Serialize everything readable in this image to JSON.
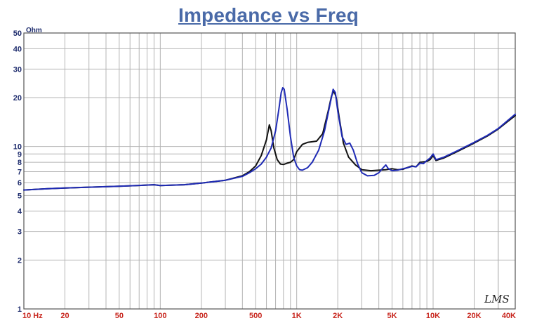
{
  "chart_data": {
    "type": "line",
    "title": "Impedance vs Freq",
    "y_unit": "Ohm",
    "x_scale": "log",
    "y_scale": "log",
    "xlim": [
      10,
      40000
    ],
    "ylim": [
      1,
      50
    ],
    "grid": true,
    "x_tick_labels": [
      {
        "value": 10,
        "label": "10  Hz"
      },
      {
        "value": 20,
        "label": "20"
      },
      {
        "value": 50,
        "label": "50"
      },
      {
        "value": 100,
        "label": "100"
      },
      {
        "value": 200,
        "label": "200"
      },
      {
        "value": 500,
        "label": "500"
      },
      {
        "value": 1000,
        "label": "1K"
      },
      {
        "value": 2000,
        "label": "2K"
      },
      {
        "value": 5000,
        "label": "5K"
      },
      {
        "value": 10000,
        "label": "10K"
      },
      {
        "value": 20000,
        "label": "20K"
      },
      {
        "value": 40000,
        "label": "40K"
      }
    ],
    "y_tick_labels": [
      {
        "value": 1,
        "label": "1"
      },
      {
        "value": 2,
        "label": "2"
      },
      {
        "value": 3,
        "label": "3"
      },
      {
        "value": 4,
        "label": "4"
      },
      {
        "value": 5,
        "label": "5"
      },
      {
        "value": 6,
        "label": "6"
      },
      {
        "value": 7,
        "label": "7"
      },
      {
        "value": 8,
        "label": "8"
      },
      {
        "value": 9,
        "label": "9"
      },
      {
        "value": 10,
        "label": "10"
      },
      {
        "value": 20,
        "label": "20"
      },
      {
        "value": 30,
        "label": "30"
      },
      {
        "value": 40,
        "label": "40"
      },
      {
        "value": 50,
        "label": "50"
      }
    ],
    "watermark": "LMS",
    "series": [
      {
        "color": "#111111",
        "points": [
          [
            10,
            5.4
          ],
          [
            15,
            5.5
          ],
          [
            20,
            5.55
          ],
          [
            30,
            5.62
          ],
          [
            50,
            5.7
          ],
          [
            70,
            5.76
          ],
          [
            90,
            5.82
          ],
          [
            100,
            5.75
          ],
          [
            150,
            5.82
          ],
          [
            200,
            5.95
          ],
          [
            300,
            6.2
          ],
          [
            400,
            6.6
          ],
          [
            450,
            7.0
          ],
          [
            500,
            7.6
          ],
          [
            550,
            8.8
          ],
          [
            600,
            11.0
          ],
          [
            630,
            13.6
          ],
          [
            650,
            12.5
          ],
          [
            680,
            9.8
          ],
          [
            720,
            8.3
          ],
          [
            760,
            7.8
          ],
          [
            800,
            7.75
          ],
          [
            850,
            7.9
          ],
          [
            900,
            8.0
          ],
          [
            950,
            8.3
          ],
          [
            1000,
            9.3
          ],
          [
            1100,
            10.3
          ],
          [
            1200,
            10.6
          ],
          [
            1400,
            10.8
          ],
          [
            1550,
            12.0
          ],
          [
            1700,
            16.5
          ],
          [
            1800,
            20.5
          ],
          [
            1880,
            22.0
          ],
          [
            1950,
            20.0
          ],
          [
            2050,
            15.0
          ],
          [
            2200,
            10.5
          ],
          [
            2400,
            8.6
          ],
          [
            2700,
            7.7
          ],
          [
            3000,
            7.2
          ],
          [
            3500,
            7.1
          ],
          [
            4000,
            7.15
          ],
          [
            4500,
            7.2
          ],
          [
            5000,
            7.3
          ],
          [
            5500,
            7.2
          ],
          [
            6000,
            7.25
          ],
          [
            7000,
            7.6
          ],
          [
            7500,
            7.5
          ],
          [
            8000,
            8.0
          ],
          [
            9000,
            8.1
          ],
          [
            9500,
            8.3
          ],
          [
            10000,
            8.8
          ],
          [
            10500,
            8.2
          ],
          [
            12000,
            8.5
          ],
          [
            15000,
            9.3
          ],
          [
            20000,
            10.5
          ],
          [
            25000,
            11.6
          ],
          [
            30000,
            12.8
          ],
          [
            35000,
            14.2
          ],
          [
            40000,
            15.5
          ]
        ]
      },
      {
        "color": "#1f2bb5",
        "points": [
          [
            10,
            5.4
          ],
          [
            15,
            5.5
          ],
          [
            20,
            5.55
          ],
          [
            30,
            5.62
          ],
          [
            50,
            5.7
          ],
          [
            70,
            5.76
          ],
          [
            90,
            5.82
          ],
          [
            100,
            5.75
          ],
          [
            150,
            5.82
          ],
          [
            200,
            5.95
          ],
          [
            300,
            6.2
          ],
          [
            400,
            6.55
          ],
          [
            450,
            6.9
          ],
          [
            500,
            7.3
          ],
          [
            550,
            7.8
          ],
          [
            600,
            8.6
          ],
          [
            650,
            9.8
          ],
          [
            700,
            12.5
          ],
          [
            740,
            17.0
          ],
          [
            770,
            21.5
          ],
          [
            790,
            23.0
          ],
          [
            810,
            22.5
          ],
          [
            850,
            17.0
          ],
          [
            900,
            11.5
          ],
          [
            950,
            8.6
          ],
          [
            1000,
            7.6
          ],
          [
            1050,
            7.2
          ],
          [
            1100,
            7.15
          ],
          [
            1200,
            7.4
          ],
          [
            1300,
            8.0
          ],
          [
            1450,
            9.5
          ],
          [
            1600,
            12.5
          ],
          [
            1750,
            18.0
          ],
          [
            1850,
            22.5
          ],
          [
            1920,
            21.5
          ],
          [
            2000,
            16.5
          ],
          [
            2150,
            11.5
          ],
          [
            2300,
            10.3
          ],
          [
            2450,
            10.5
          ],
          [
            2600,
            9.5
          ],
          [
            2800,
            7.8
          ],
          [
            3000,
            6.9
          ],
          [
            3300,
            6.6
          ],
          [
            3700,
            6.65
          ],
          [
            4000,
            6.9
          ],
          [
            4300,
            7.4
          ],
          [
            4500,
            7.7
          ],
          [
            4700,
            7.3
          ],
          [
            5000,
            7.1
          ],
          [
            5500,
            7.15
          ],
          [
            6000,
            7.3
          ],
          [
            6500,
            7.4
          ],
          [
            7000,
            7.55
          ],
          [
            7500,
            7.5
          ],
          [
            8000,
            7.9
          ],
          [
            8500,
            7.85
          ],
          [
            9000,
            8.2
          ],
          [
            9500,
            8.5
          ],
          [
            10000,
            9.0
          ],
          [
            10500,
            8.3
          ],
          [
            12000,
            8.6
          ],
          [
            15000,
            9.4
          ],
          [
            20000,
            10.6
          ],
          [
            25000,
            11.7
          ],
          [
            30000,
            12.9
          ],
          [
            35000,
            14.4
          ],
          [
            40000,
            15.8
          ]
        ]
      }
    ]
  }
}
